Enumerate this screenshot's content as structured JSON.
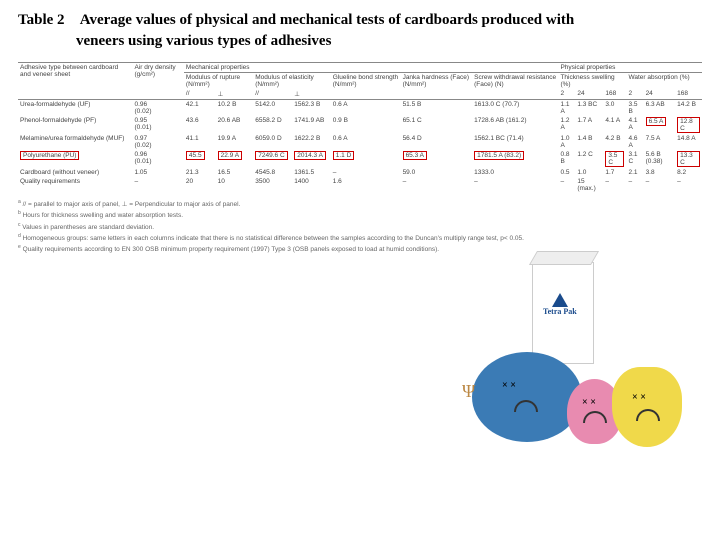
{
  "title_label": "Table 2",
  "title_text": "Average values of physical and mechanical tests of cardboards produced with",
  "title_sub": "veneers using various types of adhesives",
  "header_groups": {
    "col1": "Adhesive type between cardboard and veneer sheet",
    "col2": "Air dry density (g/cm²)",
    "mech": "Mechanical properties",
    "phys": "Physical properties",
    "mor": "Modulus of rupture (N/mm²)",
    "moe": "Modulus of elasticity (N/mm²)",
    "glue": "Glueline bond strength (N/mm²)",
    "janka": "Janka hardness (Face) (N/mm²)",
    "screw": "Screw withdrawal resistance (Face) (N)",
    "ts": "Thickness swelling (%)",
    "wa": "Water absorption (%)"
  },
  "subhead": {
    "par": "//",
    "perp": "⊥",
    "h2": "2",
    "h24": "24",
    "h168": "168"
  },
  "rows": [
    {
      "name": "Urea-formaldehyde (UF)",
      "dens": "0.96",
      "dens_sd": "(0.02)",
      "mor_p": "42.1",
      "mor_p_g": "10.2 B",
      "mor_e": "5142.0",
      "mor_e_g": "1562.3 B",
      "moe_p": "",
      "moe_e": "",
      "glue": "0.6 A",
      "janka": "51.5 B",
      "screw": "1613.0 C (70.7)",
      "ts2": "1.1 A",
      "ts24": "1.3 BC",
      "ts168": "3.0",
      "wa2": "3.5 B",
      "wa24": "6.3 AB",
      "wa168": "14.2 B"
    },
    {
      "name": "Phenol-formaldehyde (PF)",
      "dens": "0.95",
      "dens_sd": "(0.01)",
      "mor_p": "43.6",
      "mor_p_g": "20.6 AB",
      "mor_e": "6558.2 D",
      "mor_e_g": "1741.9 AB",
      "moe_p": "",
      "moe_e": "",
      "glue": "0.9 B",
      "janka": "65.1 C",
      "screw": "1728.6 AB (161.2)",
      "ts2": "1.2 A",
      "ts24": "1.7 A",
      "ts168": "4.1 A",
      "wa2": "4.1 A",
      "wa24": "6.5 A",
      "wa168": "12.8 C",
      "hl_wa24": true,
      "hl_wa168": true
    },
    {
      "name": "Melamine/urea formaldehyde (MUF)",
      "dens": "0.97",
      "dens_sd": "(0.02)",
      "mor_p": "41.1",
      "mor_p_g": "19.9 A",
      "mor_e": "6059.0 D",
      "mor_e_g": "1622.2 B",
      "moe_p": "",
      "moe_e": "",
      "glue": "0.6 A",
      "janka": "56.4 D",
      "screw": "1562.1 BC (71.4)",
      "ts2": "1.0 A",
      "ts24": "1.4 B",
      "ts168": "4.2 B",
      "wa2": "4.6 A",
      "wa24": "7.5 A",
      "wa168": "14.8 A"
    },
    {
      "name": "Polyurethane (PU)",
      "dens": "0.96",
      "dens_sd": "(0.01)",
      "mor_p": "45.5",
      "mor_p_g": "22.9 A",
      "mor_e": "7249.6 C",
      "mor_e_g": "2014.3 A",
      "moe_p": "",
      "moe_e": "",
      "glue": "1.1 D",
      "janka": "65.3 A",
      "screw": "1781.5 A (83.2)",
      "ts2": "0.8 B",
      "ts24": "1.2 C",
      "ts168": "3.5 C",
      "wa2": "3.1 C",
      "wa24": "5.6 B (0.38)",
      "wa168": "13.3 C",
      "hl_row": true
    },
    {
      "name": "Cardboard (without veneer)",
      "dens": "1.05",
      "dens_sd": "",
      "mor_p": "21.3",
      "mor_p_g": "16.5",
      "mor_e": "4545.8",
      "mor_e_g": "1361.5",
      "moe_p": "",
      "moe_e": "",
      "glue": "–",
      "janka": "59.0",
      "screw": "1333.0",
      "ts2": "0.5",
      "ts24": "1.0",
      "ts168": "1.7",
      "wa2": "2.1",
      "wa24": "3.8",
      "wa168": "8.2"
    },
    {
      "name": "Quality requirements",
      "dens": "–",
      "dens_sd": "",
      "mor_p": "20",
      "mor_p_g": "10",
      "mor_e": "3500",
      "mor_e_g": "1400",
      "moe_p": "(min.)",
      "moe_e": "(min.)",
      "glue": "1.6",
      "janka": "–",
      "screw": "–",
      "ts2": "–",
      "ts24": "15 (max.)",
      "ts168": "–",
      "wa2": "–",
      "wa24": "–",
      "wa168": "–"
    }
  ],
  "notes": [
    "// = parallel to major axis of panel, ⊥ = Perpendicular to major axis of panel.",
    "Hours for thickness swelling and water absorption tests.",
    "Values in parentheses are standard deviation.",
    "Homogeneous groups: same letters in each columns indicate that there is no statistical difference between the samples according to the Duncan's multiply range test, p< 0.05.",
    "Quality requirements according to EN 300 OSB minimum property requirement (1997) Type 3 (OSB panels exposed to load at humid conditions)."
  ],
  "note_marks": [
    "a",
    "b",
    "c",
    "d",
    "e"
  ],
  "logo_text": "Tetra Pak",
  "colors": {
    "highlight": "#c00",
    "blue": "#3b7bb5",
    "pink": "#e88bb0",
    "yellow": "#f0d94a",
    "navy": "#1a4b8c"
  }
}
